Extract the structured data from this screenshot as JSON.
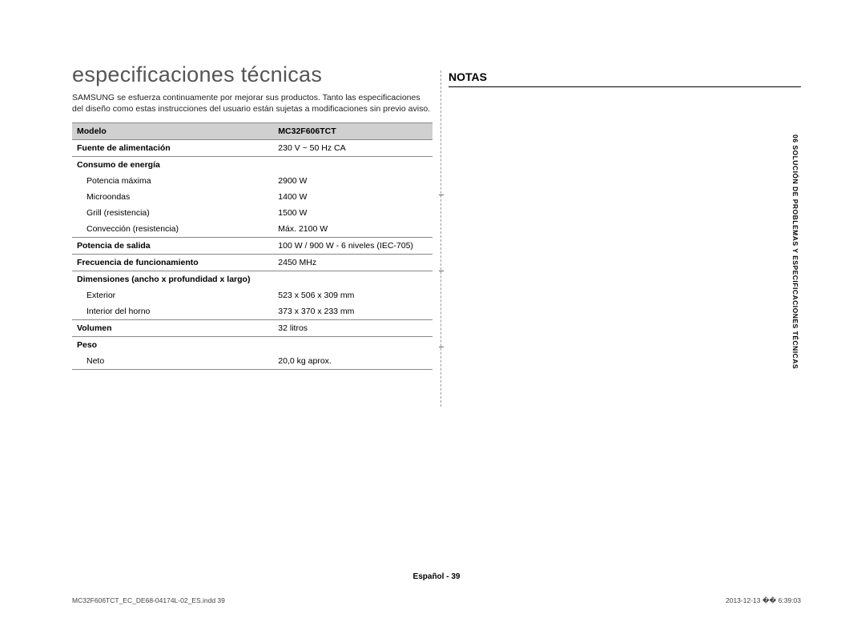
{
  "left": {
    "title": "especificaciones técnicas",
    "intro": "SAMSUNG se esfuerza continuamente por mejorar sus productos. Tanto las especificaciones del diseño como estas instrucciones del usuario están sujetas a modificaciones sin previo aviso.",
    "table": {
      "header": {
        "c1": "Modelo",
        "c2": "MC32F606TCT"
      },
      "rows": [
        {
          "type": "main",
          "c1": "Fuente de alimentación",
          "c2": "230 V ~ 50 Hz CA"
        },
        {
          "type": "main-nb",
          "c1": "Consumo de energía",
          "c2": ""
        },
        {
          "type": "sub-nb",
          "c1": "Potencia máxima",
          "c2": "2900 W"
        },
        {
          "type": "sub-nb",
          "c1": "Microondas",
          "c2": "1400 W"
        },
        {
          "type": "sub-nb",
          "c1": "Grill (resistencia)",
          "c2": "1500 W"
        },
        {
          "type": "sub",
          "c1": "Convección (resistencia)",
          "c2": "Máx. 2100 W"
        },
        {
          "type": "main",
          "c1": "Potencia de salida",
          "c2": "100 W / 900 W - 6 niveles (IEC-705)"
        },
        {
          "type": "main",
          "c1": "Frecuencia de funcionamiento",
          "c2": "2450 MHz"
        },
        {
          "type": "main-nb",
          "c1": "Dimensiones (ancho x profundidad x largo)",
          "c2": ""
        },
        {
          "type": "sub-nb",
          "c1": "Exterior",
          "c2": "523 x 506 x 309 mm"
        },
        {
          "type": "sub",
          "c1": "Interior del horno",
          "c2": "373 x 370 x 233 mm"
        },
        {
          "type": "main",
          "c1": "Volumen",
          "c2": "32 litros"
        },
        {
          "type": "main-nb",
          "c1": "Peso",
          "c2": ""
        },
        {
          "type": "sub",
          "c1": "Neto",
          "c2": "20,0 kg aprox."
        }
      ]
    }
  },
  "right": {
    "heading": "NOTAS"
  },
  "side_tab": "06 SOLUCIÓN DE PROBLEMAS Y ESPECIFICACIONES TÉCNICAS",
  "footer": "Español - 39",
  "print": {
    "left": "MC32F606TCT_EC_DE68-04174L-02_ES.indd   39",
    "right": "2013-12-13   �� 6:39:03"
  },
  "colors": {
    "title_color": "#555555",
    "header_bg": "#d0d0d0",
    "border": "#888888",
    "text": "#222222"
  }
}
